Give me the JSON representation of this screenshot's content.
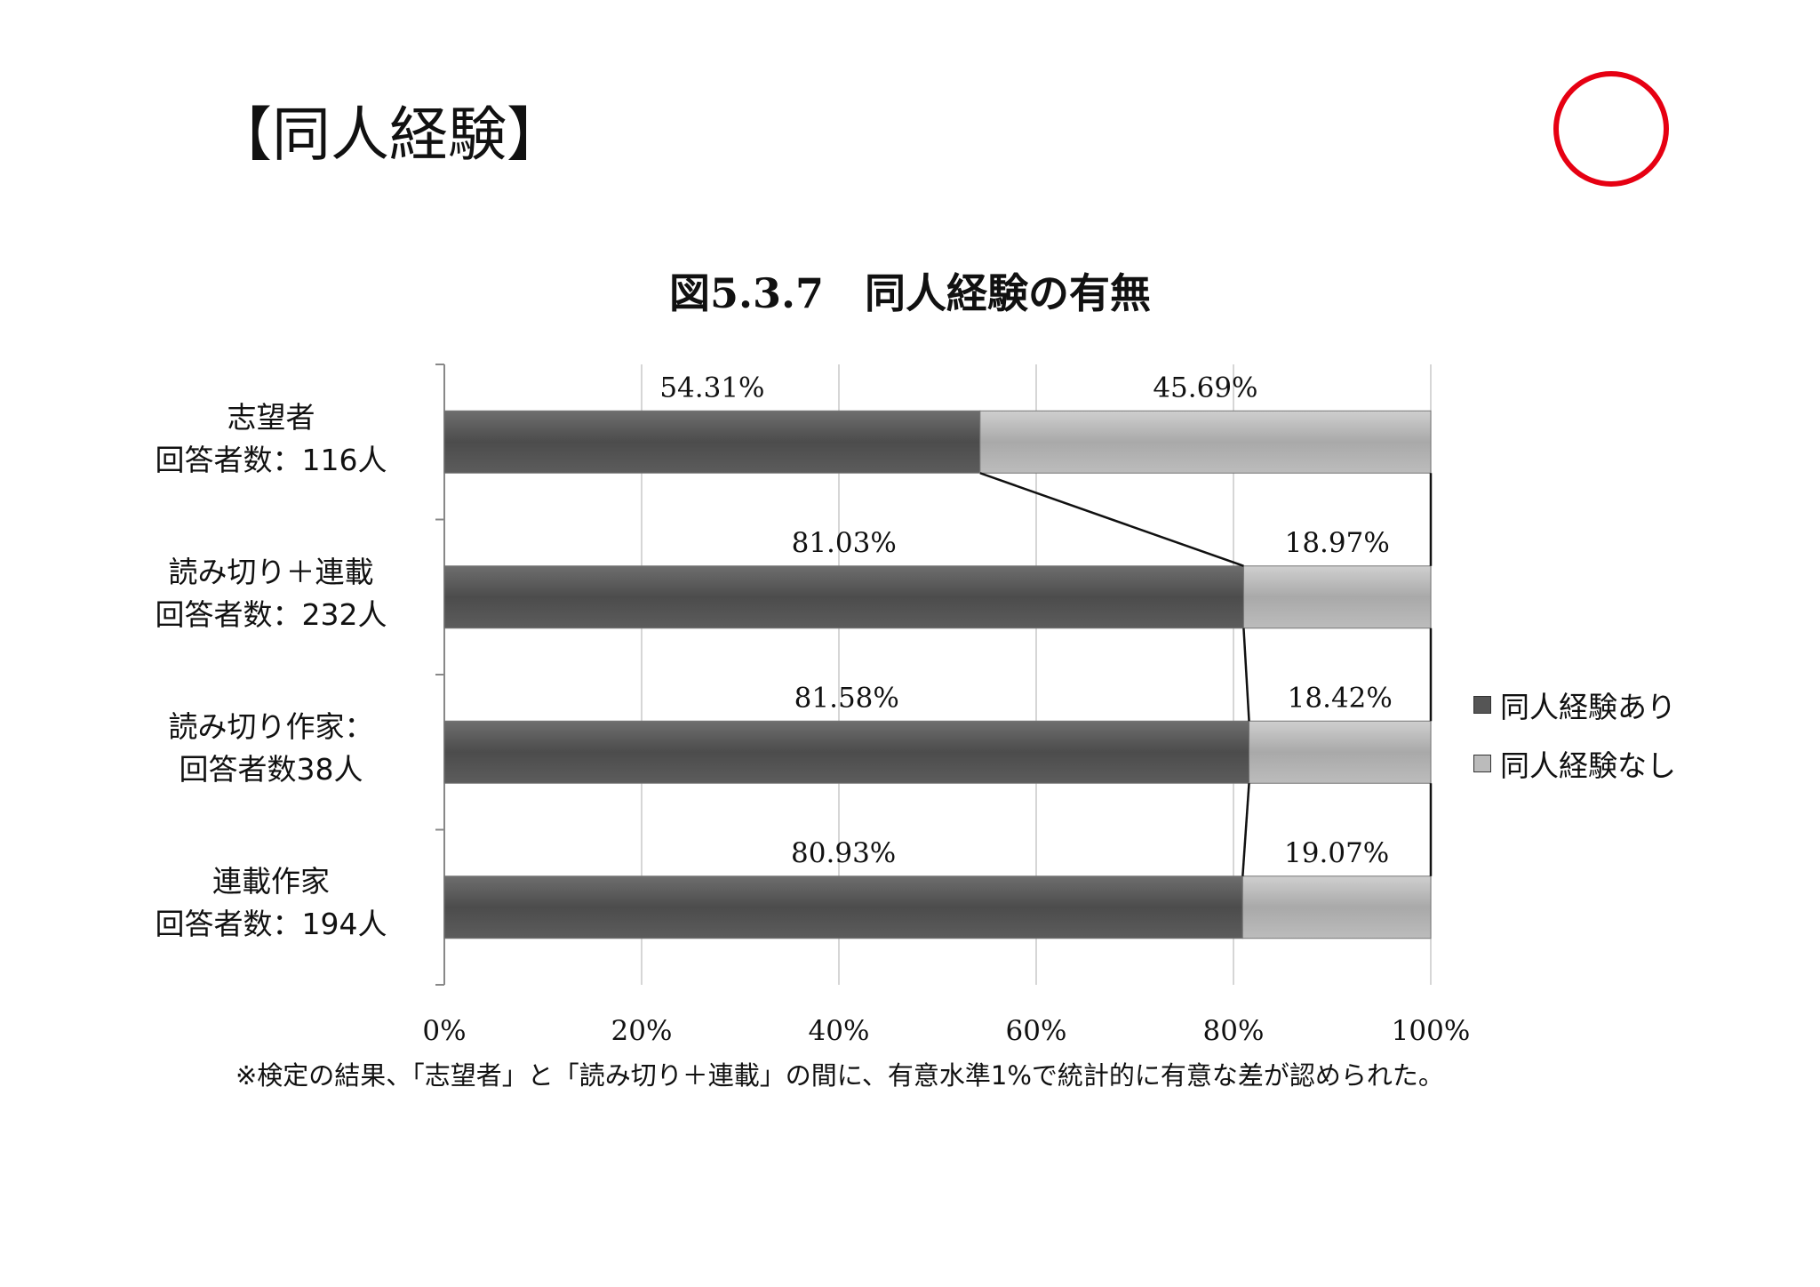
{
  "page": {
    "heading": "【同人経験】"
  },
  "colors": {
    "circle": "#e60012",
    "series_yes": "#5a5a5a",
    "series_no": "#b8b8b8"
  },
  "chart_data": {
    "type": "bar",
    "orientation": "horizontal",
    "stacked": "percent",
    "title": "図5.3.7　同人経験の有無",
    "categories": [
      [
        "志望者",
        "回答者数：116人"
      ],
      [
        "読み切り＋連載",
        "回答者数：232人"
      ],
      [
        "読み切り作家：",
        "回答者数38人"
      ],
      [
        "連載作家",
        "回答者数：194人"
      ]
    ],
    "series": [
      {
        "name": "同人経験あり",
        "values": [
          54.31,
          81.03,
          81.58,
          80.93
        ],
        "labels": [
          "54.31%",
          "81.03%",
          "81.58%",
          "80.93%"
        ]
      },
      {
        "name": "同人経験なし",
        "values": [
          45.69,
          18.97,
          18.42,
          19.07
        ],
        "labels": [
          "45.69%",
          "18.97%",
          "18.42%",
          "19.07%"
        ]
      }
    ],
    "xlim": [
      0,
      100
    ],
    "xticks": [
      "0%",
      "20%",
      "40%",
      "60%",
      "80%",
      "100%"
    ],
    "grid": true,
    "series_lines": true,
    "legend_position": "right"
  },
  "footnote": "※検定の結果、「志望者」と「読み切り＋連載」の間に、有意水準1%で統計的に有意な差が認められた。"
}
